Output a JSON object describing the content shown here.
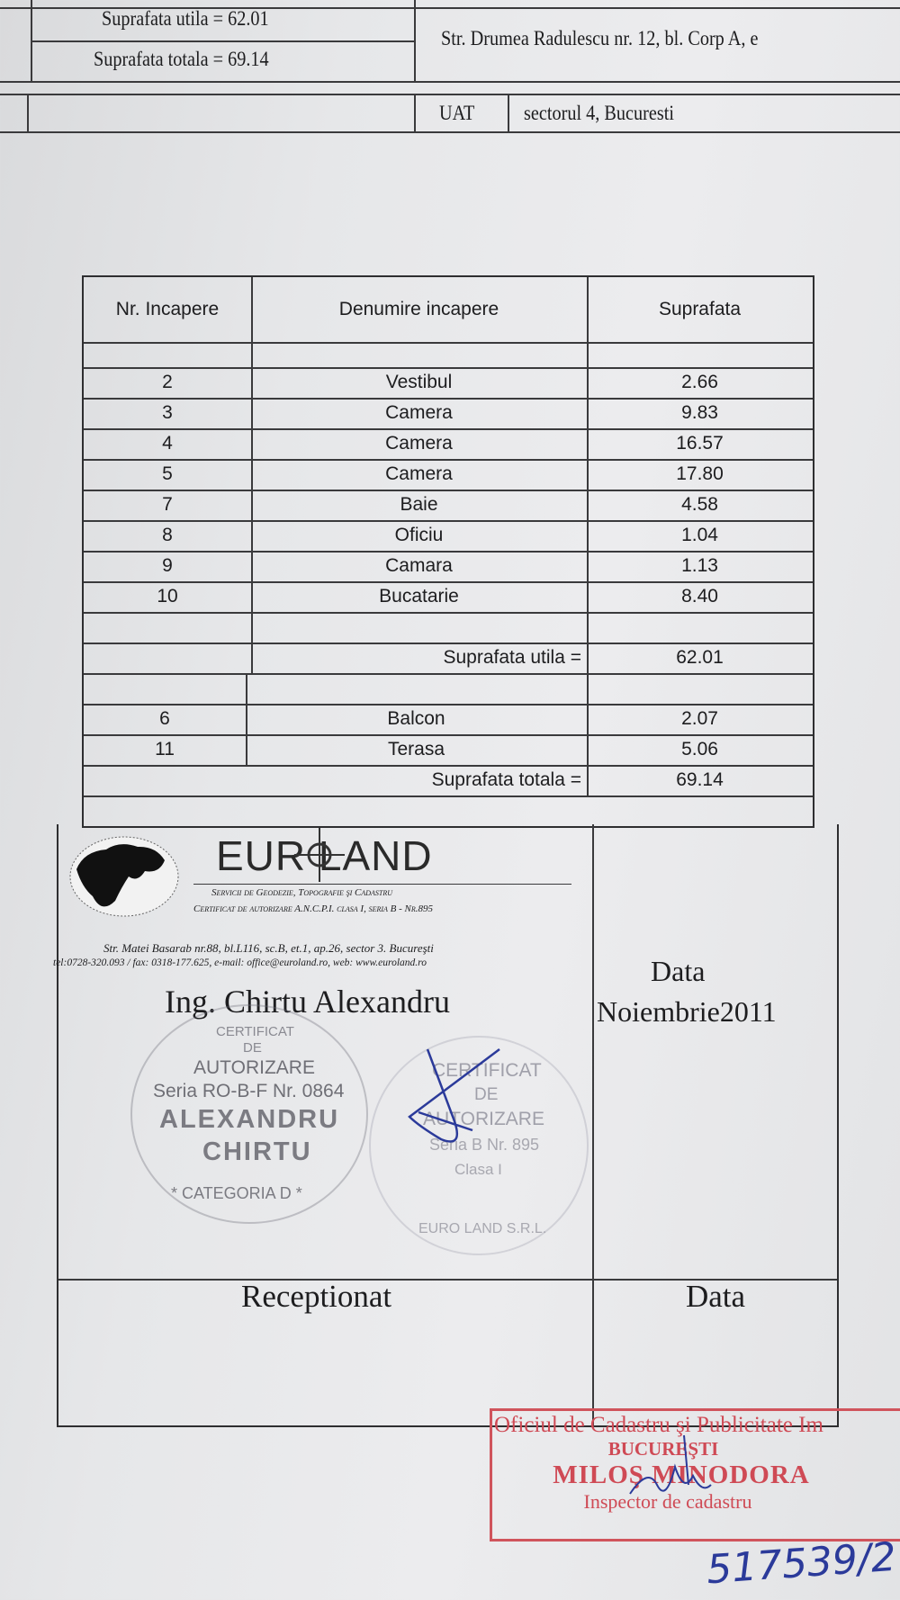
{
  "header": {
    "suprafata_utila": "Suprafata utila =  62.01",
    "suprafata_totala": "Suprafata totala =  69.14",
    "address": "Str. Drumea Radulescu nr. 12, bl. Corp A, e",
    "uat_label": "UAT",
    "uat_value": "sectorul 4, Bucuresti"
  },
  "table": {
    "columns": [
      "Nr. Incapere",
      "Denumire incapere",
      "Suprafata"
    ],
    "rooms": [
      {
        "nr": "2",
        "name": "Vestibul",
        "area": "2.66"
      },
      {
        "nr": "3",
        "name": "Camera",
        "area": "9.83"
      },
      {
        "nr": "4",
        "name": "Camera",
        "area": "16.57"
      },
      {
        "nr": "5",
        "name": "Camera",
        "area": "17.80"
      },
      {
        "nr": "7",
        "name": "Baie",
        "area": "4.58"
      },
      {
        "nr": "8",
        "name": "Oficiu",
        "area": "1.04"
      },
      {
        "nr": "9",
        "name": "Camara",
        "area": "1.13"
      },
      {
        "nr": "10",
        "name": "Bucatarie",
        "area": "8.40"
      }
    ],
    "utila_label": "Suprafata utila =",
    "utila_value": "62.01",
    "exterior": [
      {
        "nr": "6",
        "name": "Balcon",
        "area": "2.07"
      },
      {
        "nr": "11",
        "name": "Terasa",
        "area": "5.06"
      }
    ],
    "totala_label": "Suprafata totala =",
    "totala_value": "69.14"
  },
  "company": {
    "logo_text": "EUR LAND",
    "tagline": "Servicii de Geodezie, Topografie şi Cadastru",
    "certificate": "Certificat de autorizare A.N.C.P.I. clasa I, seria B - Nr.895",
    "address": "Str. Matei Basarab nr.88, bl.L116, sc.B, et.1, ap.26, sector 3. Bucureşti",
    "contact": "tel:0728-320.093 / fax: 0318-177.625, e-mail: office@euroland.ro, web: www.euroland.ro",
    "engineer": "Ing. Chirtu Alexandru"
  },
  "stamp_personal": {
    "line1": "CERTIFICAT",
    "line2": "DE",
    "line3": "AUTORIZARE",
    "line4": "Seria RO-B-F Nr. 0864",
    "line5": "ALEXANDRU",
    "line6": "CHIRTU",
    "ring": "* CATEGORIA D *"
  },
  "stamp_company": {
    "line1": "CERTIFICAT",
    "line2": "DE",
    "line3": "AUTORIZARE",
    "line4": "Seria B Nr. 895",
    "line5": "Clasa I",
    "ring": "EURO LAND S.R.L."
  },
  "date_block": {
    "label": "Data",
    "value": "Noiembrie2011"
  },
  "reception": {
    "label": "Receptionat",
    "date_label": "Data"
  },
  "ocpi_stamp": {
    "line1": "Oficiul de Cadastru şi Publicitate Im",
    "line2": "BUCUREŞTI",
    "line3": "MILOŞ MINODORA",
    "line4": "Inspector de cadastru",
    "handwritten_number": "517539/2"
  },
  "colors": {
    "paper": "#e6e7e9",
    "ink": "#1d1d1f",
    "stamp_red": "#cf4a55",
    "pen_blue": "#2b3a9a"
  }
}
